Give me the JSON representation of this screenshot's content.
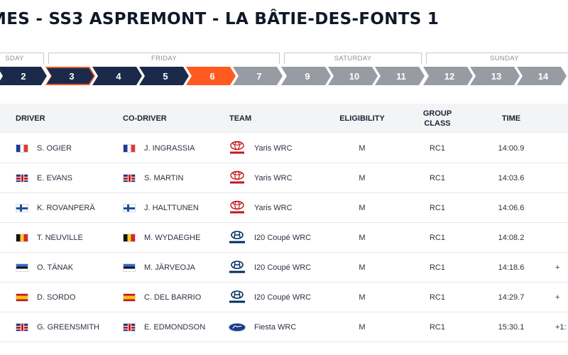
{
  "title": "MES - SS3 ASPREMONT - LA BÂTIE-DES-FONTS 1",
  "days": [
    {
      "label": "SDAY"
    },
    {
      "label": "FRIDAY"
    },
    {
      "label": "SATURDAY"
    },
    {
      "label": "SUNDAY"
    }
  ],
  "stages": [
    {
      "label": "2",
      "state": "navy"
    },
    {
      "label": "3",
      "state": "selected"
    },
    {
      "label": "4",
      "state": "navy"
    },
    {
      "label": "5",
      "state": "navy"
    },
    {
      "label": "6",
      "state": "active"
    },
    {
      "label": "7",
      "state": "gray"
    },
    {
      "label": "9",
      "state": "gray"
    },
    {
      "label": "10",
      "state": "gray"
    },
    {
      "label": "11",
      "state": "gray"
    },
    {
      "label": "12",
      "state": "gray"
    },
    {
      "label": "13",
      "state": "gray"
    },
    {
      "label": "14",
      "state": "gray"
    }
  ],
  "colors": {
    "navy": "#1b2a4a",
    "gray": "#979ca4",
    "orange": "#ff5a1f"
  },
  "columns": {
    "driver": "DRIVER",
    "codriver": "CO-DRIVER",
    "team": "TEAM",
    "eligibility": "ELIGIBILITY",
    "group_class_1": "GROUP",
    "group_class_2": "CLASS",
    "time": "TIME"
  },
  "rows": [
    {
      "driver": "S. OGIER",
      "driver_flag": "fr",
      "codriver": "J. INGRASSIA",
      "codriver_flag": "fr",
      "team_logo": "toyota-logo",
      "team": "Yaris WRC",
      "eligibility": "M",
      "group_class": "RC1",
      "time": "14:00.9",
      "gap": ""
    },
    {
      "driver": "E. EVANS",
      "driver_flag": "gb",
      "codriver": "S. MARTIN",
      "codriver_flag": "gb",
      "team_logo": "toyota-logo",
      "team": "Yaris WRC",
      "eligibility": "M",
      "group_class": "RC1",
      "time": "14:03.6",
      "gap": ""
    },
    {
      "driver": "K. ROVANPERÄ",
      "driver_flag": "fi",
      "codriver": "J. HALTTUNEN",
      "codriver_flag": "fi",
      "team_logo": "toyota-logo",
      "team": "Yaris WRC",
      "eligibility": "M",
      "group_class": "RC1",
      "time": "14:06.6",
      "gap": ""
    },
    {
      "driver": "T. NEUVILLE",
      "driver_flag": "be",
      "codriver": "M. WYDAEGHE",
      "codriver_flag": "be",
      "team_logo": "hyundai-logo",
      "team": "I20 Coupé WRC",
      "eligibility": "M",
      "group_class": "RC1",
      "time": "14:08.2",
      "gap": ""
    },
    {
      "driver": "O. TÄNAK",
      "driver_flag": "ee",
      "codriver": "M. JÄRVEOJA",
      "codriver_flag": "ee",
      "team_logo": "hyundai-logo",
      "team": "I20 Coupé WRC",
      "eligibility": "M",
      "group_class": "RC1",
      "time": "14:18.6",
      "gap": "+"
    },
    {
      "driver": "D. SORDO",
      "driver_flag": "es",
      "codriver": "C. DEL BARRIO",
      "codriver_flag": "es",
      "team_logo": "hyundai-logo",
      "team": "I20 Coupé WRC",
      "eligibility": "M",
      "group_class": "RC1",
      "time": "14:29.7",
      "gap": "+"
    },
    {
      "driver": "G. GREENSMITH",
      "driver_flag": "gb",
      "codriver": "E. EDMONDSON",
      "codriver_flag": "gb",
      "team_logo": "ford-logo",
      "team": "Fiesta WRC",
      "eligibility": "M",
      "group_class": "RC1",
      "time": "15:30.1",
      "gap": "+1:"
    }
  ]
}
